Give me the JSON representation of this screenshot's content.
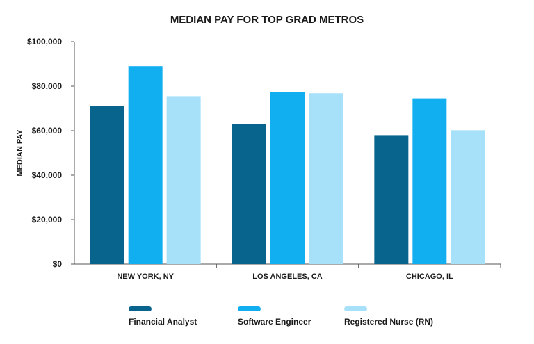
{
  "chart_data": {
    "type": "bar",
    "title": "MEDIAN PAY FOR TOP GRAD METROS",
    "xlabel": "",
    "ylabel": "MEDIAN PAY",
    "ylim": [
      0,
      100000
    ],
    "yticks": [
      0,
      20000,
      40000,
      60000,
      80000,
      100000
    ],
    "ytick_labels": [
      "$0",
      "$20,000",
      "$40,000",
      "$60,000",
      "$80,000",
      "$100,000"
    ],
    "categories": [
      "NEW YORK, NY",
      "LOS ANGELES, CA",
      "CHICAGO, IL"
    ],
    "series": [
      {
        "name": "Financial Analyst",
        "color": "#08648c",
        "values": [
          71000,
          63000,
          58000
        ]
      },
      {
        "name": "Software Engineer",
        "color": "#12aff0",
        "values": [
          89000,
          77500,
          74500
        ]
      },
      {
        "name": "Registered Nurse (RN)",
        "color": "#a6e0f9",
        "values": [
          75500,
          76800,
          60200
        ]
      }
    ],
    "legend_position": "bottom",
    "grid": false
  }
}
